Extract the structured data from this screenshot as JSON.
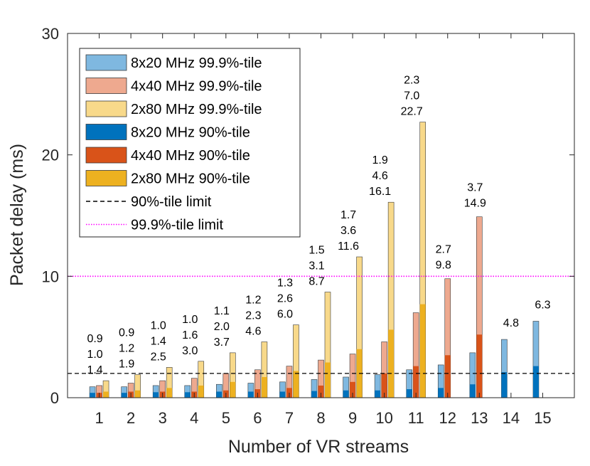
{
  "chart_data": {
    "type": "bar",
    "title": "",
    "xlabel": "Number of VR streams",
    "ylabel": "Packet delay (ms)",
    "ylim": [
      0,
      30
    ],
    "yticks": [
      0,
      10,
      20,
      30
    ],
    "categories": [
      "1",
      "2",
      "3",
      "4",
      "5",
      "6",
      "7",
      "8",
      "9",
      "10",
      "11",
      "12",
      "13",
      "14",
      "15"
    ],
    "series": [
      {
        "name": "8x20 MHz",
        "p999_legend": "8x20 MHz 99.9%-tile",
        "p90_legend": "8x20 MHz 90%-tile",
        "color_p999": "#7fb8e0",
        "color_p90": "#0072bd",
        "p999": [
          0.9,
          0.9,
          1.0,
          1.0,
          1.1,
          1.2,
          1.3,
          1.5,
          1.7,
          1.9,
          2.3,
          2.7,
          3.7,
          4.8,
          6.3
        ],
        "p90": [
          0.4,
          0.4,
          0.45,
          0.45,
          0.5,
          0.5,
          0.5,
          0.55,
          0.6,
          0.6,
          0.7,
          0.8,
          1.1,
          2.1,
          2.6
        ]
      },
      {
        "name": "4x40 MHz",
        "p999_legend": "4x40 MHz 99.9%-tile",
        "p90_legend": "4x40 MHz 90%-tile",
        "color_p999": "#eea98f",
        "color_p90": "#d95319",
        "p999": [
          1.0,
          1.2,
          1.4,
          1.6,
          2.0,
          2.3,
          2.6,
          3.1,
          3.6,
          4.6,
          7.0,
          9.8,
          14.9,
          null,
          null
        ],
        "p90": [
          0.4,
          0.5,
          0.5,
          0.5,
          0.6,
          0.7,
          0.8,
          1.0,
          1.3,
          2.0,
          2.6,
          3.5,
          5.2,
          null,
          null
        ]
      },
      {
        "name": "2x80 MHz",
        "p999_legend": "2x80 MHz 99.9%-tile",
        "p90_legend": "2x80 MHz 90%-tile",
        "color_p999": "#f8d98a",
        "color_p90": "#edb120",
        "p999": [
          1.4,
          1.9,
          2.5,
          3.0,
          3.7,
          4.6,
          6.0,
          8.7,
          11.6,
          16.1,
          22.7,
          null,
          null,
          null,
          null
        ],
        "p90": [
          0.5,
          0.6,
          0.8,
          1.0,
          1.3,
          1.7,
          2.2,
          2.9,
          4.0,
          5.6,
          7.7,
          null,
          null,
          null,
          null
        ]
      }
    ],
    "data_labels": [
      [
        0.9,
        1.0,
        1.4
      ],
      [
        0.9,
        1.2,
        1.9
      ],
      [
        1.0,
        1.4,
        2.5
      ],
      [
        1.0,
        1.6,
        3.0
      ],
      [
        1.1,
        2.0,
        3.7
      ],
      [
        1.2,
        2.3,
        4.6
      ],
      [
        1.3,
        2.6,
        6.0
      ],
      [
        1.5,
        3.1,
        8.7
      ],
      [
        1.7,
        3.6,
        11.6
      ],
      [
        1.9,
        4.6,
        16.1
      ],
      [
        2.3,
        7.0,
        22.7
      ],
      [
        2.7,
        9.8
      ],
      [
        3.7,
        14.9
      ],
      [
        4.8
      ],
      [
        6.3
      ]
    ],
    "reference_lines": [
      {
        "name": "90%-tile limit",
        "value": 2,
        "style": "dashed",
        "color": "#000000"
      },
      {
        "name": "99.9%-tile limit",
        "value": 10,
        "style": "dotted",
        "color": "#ff00ff"
      }
    ],
    "legend": {
      "position": "top-left",
      "entries": [
        "8x20 MHz 99.9%-tile",
        "4x40 MHz 99.9%-tile",
        "2x80 MHz 99.9%-tile",
        "8x20 MHz 90%-tile",
        "4x40 MHz 90%-tile",
        "2x80 MHz 90%-tile",
        "90%-tile limit",
        "99.9%-tile limit"
      ]
    },
    "grid": false
  }
}
